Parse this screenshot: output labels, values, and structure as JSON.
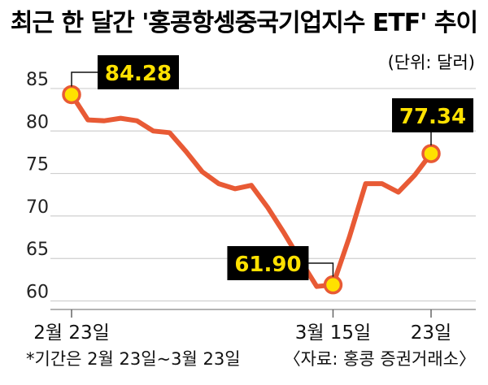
{
  "chart_data": {
    "type": "line",
    "title": "최근 한 달간 '홍콩항셍중국기업지수 ETF' 추이",
    "unit_label": "(단위: 달러)",
    "y_ticks": [
      "85",
      "80",
      "75",
      "70",
      "65",
      "60"
    ],
    "ylim": [
      59,
      87
    ],
    "x_tick_labels": [
      {
        "index": 0,
        "label": "2월 23일"
      },
      {
        "index": 16,
        "label": "3월 15일"
      },
      {
        "index": 22,
        "label": "23일"
      }
    ],
    "x": [
      0,
      1,
      2,
      3,
      4,
      5,
      6,
      7,
      8,
      9,
      10,
      11,
      12,
      13,
      14,
      15,
      16,
      17,
      18,
      19,
      20,
      21,
      22
    ],
    "series": [
      {
        "values": [
          84.28,
          81.3,
          81.2,
          81.5,
          81.2,
          80.0,
          79.8,
          77.6,
          75.2,
          73.8,
          73.2,
          73.6,
          71.0,
          68.0,
          64.8,
          61.7,
          61.9,
          67.5,
          73.8,
          73.8,
          72.8,
          74.8,
          77.34
        ]
      }
    ],
    "data_labels": [
      {
        "index": 0,
        "text": "84.28"
      },
      {
        "index": 16,
        "text": "61.90"
      },
      {
        "index": 22,
        "text": "77.34"
      }
    ],
    "footnote": "*기간은 2월 23일~3월 23일",
    "source": "〈자료: 홍콩 증권거래소〉",
    "grid": true,
    "colors": {
      "line": "#e85a35",
      "marker": "#ffe100",
      "label_bg": "#000000",
      "label_text": "#ffe100",
      "grid": "#cfcfcf"
    }
  }
}
